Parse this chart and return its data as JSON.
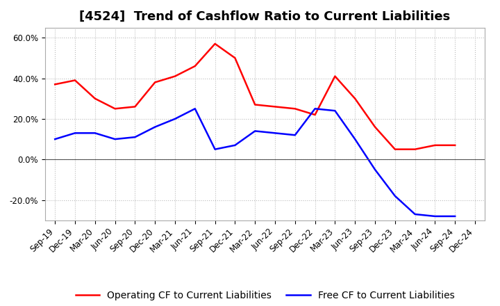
{
  "title": "[4524]  Trend of Cashflow Ratio to Current Liabilities",
  "x_labels": [
    "Sep-19",
    "Dec-19",
    "Mar-20",
    "Jun-20",
    "Sep-20",
    "Dec-20",
    "Mar-21",
    "Jun-21",
    "Sep-21",
    "Dec-21",
    "Mar-22",
    "Jun-22",
    "Sep-22",
    "Dec-22",
    "Mar-23",
    "Jun-23",
    "Sep-23",
    "Dec-23",
    "Mar-24",
    "Jun-24",
    "Sep-24",
    "Dec-24"
  ],
  "operating_cf": [
    0.37,
    0.39,
    0.3,
    0.25,
    0.26,
    0.38,
    0.41,
    0.46,
    0.57,
    0.5,
    0.27,
    0.26,
    0.25,
    0.22,
    0.41,
    0.3,
    0.16,
    0.05,
    0.05,
    0.07,
    0.07,
    null
  ],
  "free_cf": [
    0.1,
    0.13,
    0.13,
    0.1,
    0.11,
    0.16,
    0.2,
    0.25,
    0.05,
    0.07,
    0.14,
    0.13,
    0.12,
    0.25,
    0.24,
    0.1,
    -0.05,
    -0.18,
    -0.27,
    -0.28,
    -0.28,
    null
  ],
  "ylim": [
    -0.3,
    0.65
  ],
  "yticks": [
    -0.2,
    0.0,
    0.2,
    0.4,
    0.6
  ],
  "operating_color": "#ff0000",
  "free_color": "#0000ff",
  "grid_color": "#bbbbbb",
  "background_color": "#ffffff",
  "title_fontsize": 13,
  "legend_fontsize": 10,
  "tick_fontsize": 8.5
}
